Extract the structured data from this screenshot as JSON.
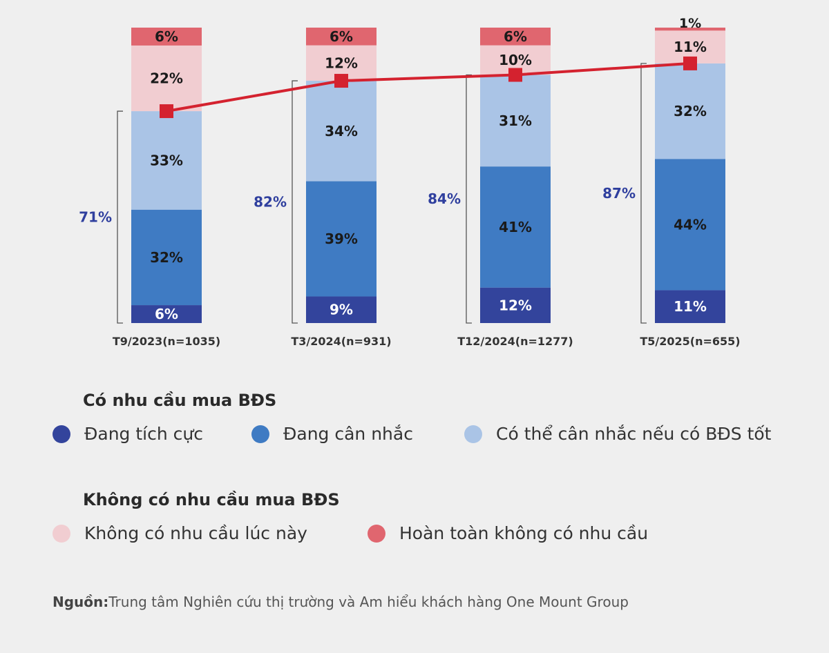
{
  "chart_data": {
    "type": "bar",
    "stacked": true,
    "categories": [
      "T9/2023(n=1035)",
      "T3/2024(n=931)",
      "T12/2024(n=1277)",
      "T5/2025(n=655)"
    ],
    "series": [
      {
        "name": "Đang tích cực",
        "values": [
          6,
          9,
          12,
          11
        ],
        "color": "#33449c"
      },
      {
        "name": "Đang cân nhắc",
        "values": [
          32,
          39,
          41,
          44
        ],
        "color": "#3f7bc3"
      },
      {
        "name": "Có thể cân nhắc nếu có BĐS tốt",
        "values": [
          33,
          34,
          31,
          32
        ],
        "color": "#aac4e6"
      },
      {
        "name": "Không có nhu cầu lúc này",
        "values": [
          22,
          12,
          10,
          11
        ],
        "color": "#f1cdd1"
      },
      {
        "name": "Hoàn toàn không có nhu cầu",
        "values": [
          6,
          6,
          6,
          1
        ],
        "color": "#e0666f"
      }
    ],
    "line": {
      "values": [
        71,
        82,
        84,
        87
      ],
      "labels": [
        "71%",
        "82%",
        "84%",
        "87%"
      ],
      "color": "#d4222f"
    },
    "ylim": [
      0,
      100
    ],
    "grid": false
  },
  "legend": {
    "group1_title": "Có nhu cầu mua BĐS",
    "group2_title": "Không có nhu cầu mua BĐS",
    "items": [
      "Đang tích cực",
      "Đang cân nhắc",
      "Có thể cân nhắc nếu có BĐS tốt",
      "Không có nhu cầu lúc này",
      "Hoàn toàn không có nhu cầu"
    ]
  },
  "source": {
    "label": "Nguồn:",
    "text": "Trung tâm Nghiên cứu thị trường và Am hiểu khách hàng One Mount Group"
  }
}
